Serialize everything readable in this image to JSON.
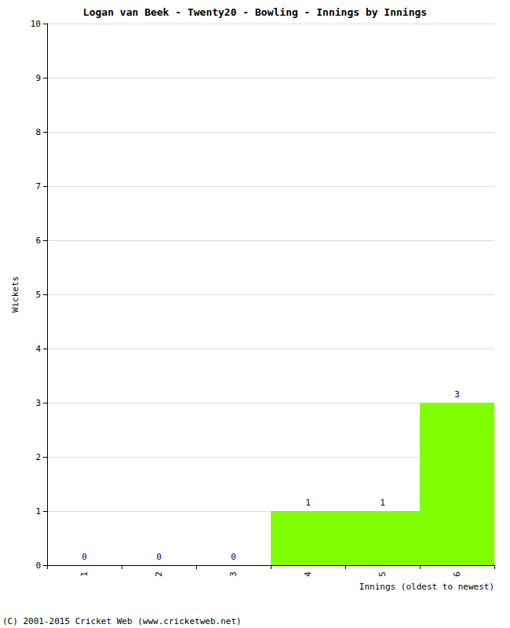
{
  "chart_data": {
    "type": "bar",
    "title": "Logan van Beek - Twenty20 - Bowling - Innings by Innings",
    "x_label": "Innings (oldest to newest)",
    "y_label": "Wickets",
    "categories": [
      "1",
      "2",
      "3",
      "4",
      "5",
      "6"
    ],
    "values": [
      0,
      0,
      0,
      1,
      1,
      3
    ],
    "color": "#7fff00",
    "ylim": [
      0,
      10
    ],
    "yticks": [
      0,
      1,
      2,
      3,
      4,
      5,
      6,
      7,
      8,
      9,
      10
    ],
    "grid": true,
    "data_labels": true,
    "annotations": [
      "(C) 2001-2015 Cricket Web (www.cricketweb.net)"
    ]
  }
}
